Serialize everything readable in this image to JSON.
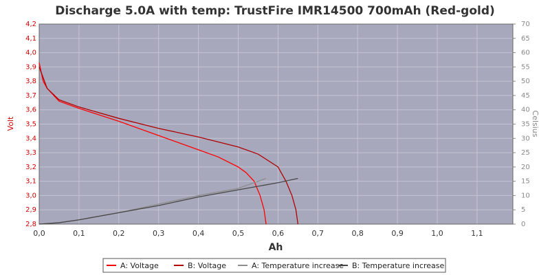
{
  "chart_data": {
    "type": "line",
    "title": "Discharge 5.0A with temp: TrustFire IMR14500 700mAh (Red-gold)",
    "x_label": "Ah",
    "y_label": "Volt",
    "y2_label": "Celsius",
    "xlim": [
      0,
      1.19
    ],
    "ylim": [
      2.8,
      4.2
    ],
    "y2lim": [
      0,
      70
    ],
    "xticks": [
      {
        "value": 0,
        "label": "0,0"
      },
      {
        "value": 0.1,
        "label": "0,1"
      },
      {
        "value": 0.2,
        "label": "0,2"
      },
      {
        "value": 0.3,
        "label": "0,3"
      },
      {
        "value": 0.4,
        "label": "0,4"
      },
      {
        "value": 0.5,
        "label": "0,5"
      },
      {
        "value": 0.6,
        "label": "0,6"
      },
      {
        "value": 0.7,
        "label": "0,7"
      },
      {
        "value": 0.8,
        "label": "0,8"
      },
      {
        "value": 0.9,
        "label": "0,9"
      },
      {
        "value": 1.0,
        "label": "1,0"
      },
      {
        "value": 1.1,
        "label": "1,1"
      }
    ],
    "yticks": [
      {
        "value": 2.8,
        "label": "2,8"
      },
      {
        "value": 2.9,
        "label": "2,9"
      },
      {
        "value": 3.0,
        "label": "3,0"
      },
      {
        "value": 3.1,
        "label": "3,1"
      },
      {
        "value": 3.2,
        "label": "3,2"
      },
      {
        "value": 3.3,
        "label": "3,3"
      },
      {
        "value": 3.4,
        "label": "3,4"
      },
      {
        "value": 3.5,
        "label": "3,5"
      },
      {
        "value": 3.6,
        "label": "3,6"
      },
      {
        "value": 3.7,
        "label": "3,7"
      },
      {
        "value": 3.8,
        "label": "3,8"
      },
      {
        "value": 3.9,
        "label": "3,9"
      },
      {
        "value": 4.0,
        "label": "4,0"
      },
      {
        "value": 4.1,
        "label": "4,1"
      },
      {
        "value": 4.2,
        "label": "4,2"
      }
    ],
    "y2ticks": [
      0,
      5,
      10,
      15,
      20,
      25,
      30,
      35,
      40,
      45,
      50,
      55,
      60,
      65,
      70
    ],
    "grid": true,
    "series": [
      {
        "name": "A: Voltage",
        "color": "#ff0000",
        "x": [
          0,
          0.01,
          0.02,
          0.05,
          0.1,
          0.2,
          0.3,
          0.4,
          0.45,
          0.5,
          0.52,
          0.54,
          0.555,
          0.565,
          0.57
        ],
        "values": [
          3.93,
          3.8,
          3.75,
          3.66,
          3.61,
          3.52,
          3.42,
          3.32,
          3.27,
          3.2,
          3.16,
          3.1,
          3.0,
          2.9,
          2.8
        ]
      },
      {
        "name": "B: Voltage",
        "color": "#b00000",
        "x": [
          0,
          0.02,
          0.05,
          0.1,
          0.2,
          0.3,
          0.4,
          0.5,
          0.55,
          0.6,
          0.62,
          0.635,
          0.645,
          0.65
        ],
        "values": [
          3.9,
          3.75,
          3.67,
          3.62,
          3.54,
          3.47,
          3.41,
          3.34,
          3.29,
          3.2,
          3.1,
          3.0,
          2.9,
          2.8
        ]
      },
      {
        "name": "A: Temperature increase",
        "color": "#8c8c8c",
        "axis": "y2",
        "x": [
          0,
          0.05,
          0.1,
          0.2,
          0.3,
          0.4,
          0.5,
          0.57
        ],
        "values": [
          0,
          0.5,
          1.5,
          4,
          7,
          10,
          12.5,
          16
        ]
      },
      {
        "name": "B: Temperature increase",
        "color": "#464646",
        "axis": "y2",
        "x": [
          0,
          0.05,
          0.1,
          0.2,
          0.3,
          0.4,
          0.5,
          0.6,
          0.65
        ],
        "values": [
          0,
          0.5,
          1.5,
          4,
          6.5,
          9.5,
          12,
          14.5,
          16
        ]
      }
    ]
  }
}
